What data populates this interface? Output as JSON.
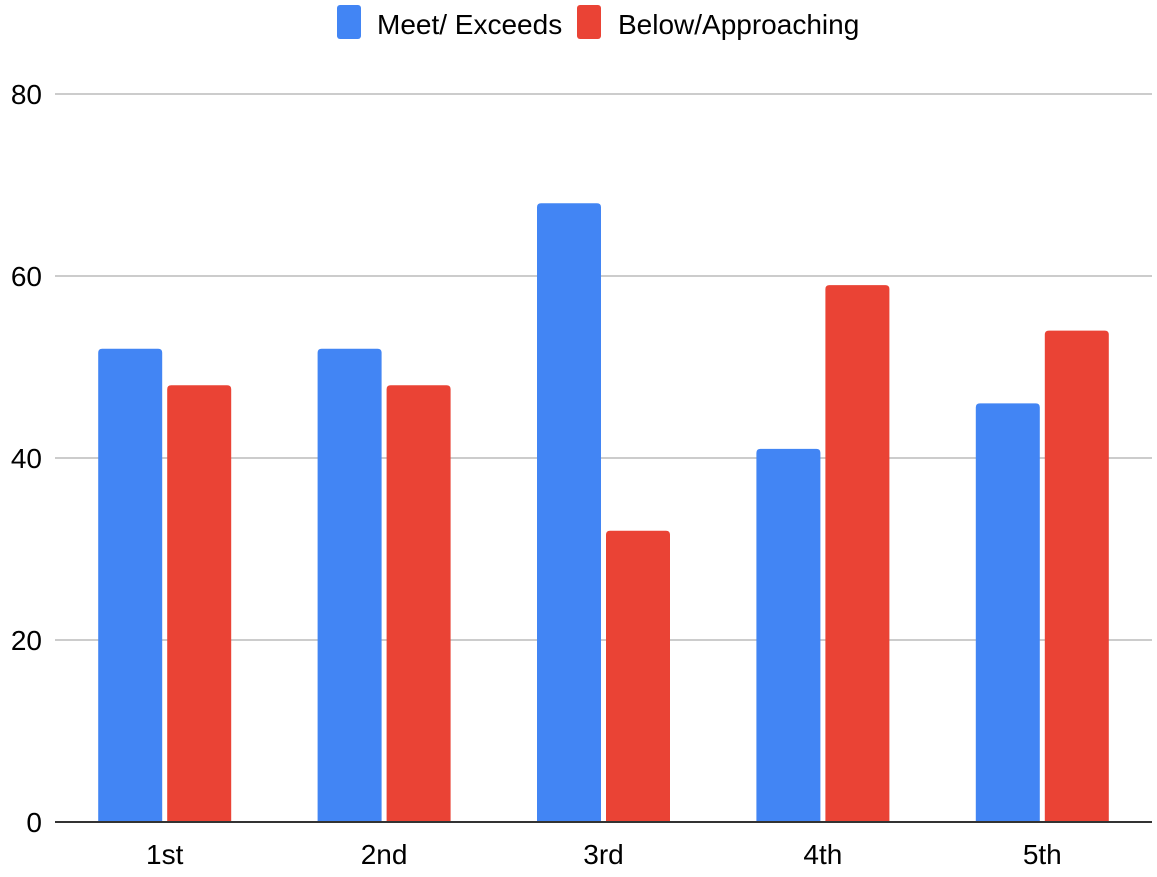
{
  "chart_data": {
    "type": "bar",
    "title": "",
    "xlabel": "",
    "ylabel": "",
    "categories": [
      "1st",
      "2nd",
      "3rd",
      "4th",
      "5th"
    ],
    "series": [
      {
        "name": "Meet/ Exceeds",
        "color": "#4285f4",
        "values": [
          52,
          52,
          68,
          41,
          46
        ]
      },
      {
        "name": "Below/Approaching",
        "color": "#ea4335",
        "values": [
          48,
          48,
          32,
          59,
          54
        ]
      }
    ],
    "ylim": [
      0,
      80
    ],
    "yticks": [
      "0",
      "20",
      "40",
      "60",
      "80"
    ],
    "grid": true,
    "legend_position": "top-center"
  }
}
